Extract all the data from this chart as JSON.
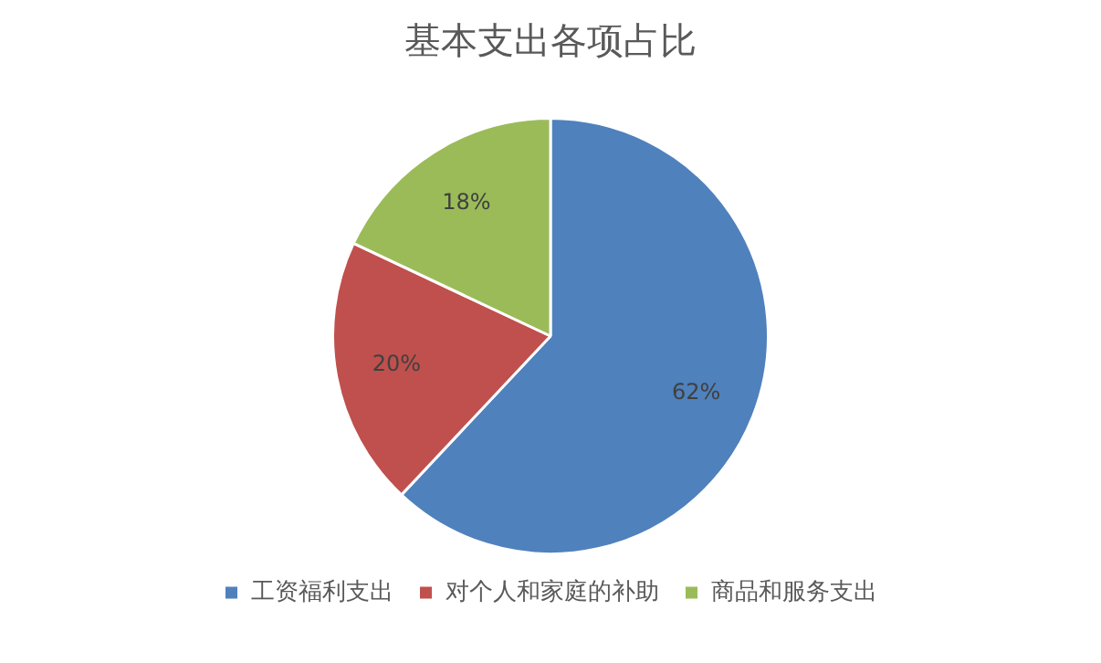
{
  "chart_data": {
    "type": "pie",
    "title": "基本支出各项占比",
    "categories": [
      "工资福利支出",
      "对个人和家庭的补助",
      "商品和服务支出"
    ],
    "values": [
      62,
      20,
      18
    ],
    "colors": [
      "#4f81bd",
      "#c0504d",
      "#9bbb59"
    ],
    "value_labels": [
      "62%",
      "20%",
      "18%"
    ],
    "legend": "bottom"
  }
}
